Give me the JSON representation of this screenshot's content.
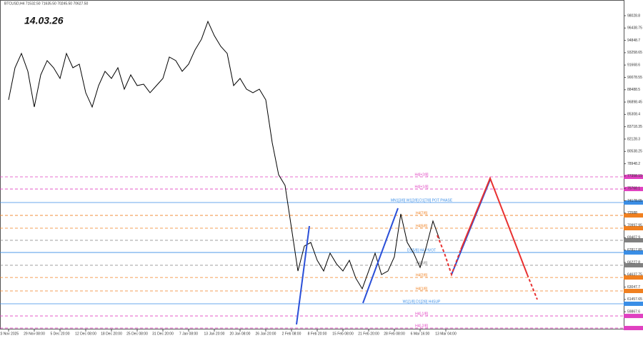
{
  "chart_data": {
    "type": "line",
    "header": "BTCUSD,H4  71532.50 71635.50 70245.50 70627.50",
    "title": "14.03.26",
    "categories": [
      "23 Nov 2025",
      null,
      null,
      null,
      "29 Nov 08:00",
      null,
      null,
      null,
      "5 Dec 20:00",
      null,
      null,
      null,
      "12 Dec 08:00",
      null,
      null,
      null,
      "18 Dec 20:00",
      null,
      null,
      null,
      "25 Dec 08:00",
      null,
      null,
      null,
      "31 Dec 20:00",
      null,
      null,
      null,
      "7 Jan 08:00",
      null,
      null,
      null,
      "13 Jan 20:00",
      null,
      null,
      null,
      "20 Jan 08:00",
      null,
      null,
      null,
      "26 Jan 20:00",
      null,
      null,
      null,
      "2 Feb 08:00",
      null,
      null,
      null,
      "8 Feb 20:00",
      null,
      null,
      null,
      "15 Feb 08:00",
      null,
      null,
      null,
      "21 Feb 20:00",
      null,
      null,
      null,
      "28 Feb 08:00",
      null,
      null,
      null,
      "6 Mar 16:00",
      null,
      null,
      null,
      "13 Mar 04:00"
    ],
    "series": [
      {
        "color": "#000000",
        "values": [
          87180,
          91320,
          93160,
          90860,
          86260,
          90400,
          92240,
          91320,
          89940,
          93160,
          91320,
          91780,
          88100,
          86260,
          89020,
          90860,
          89940,
          91320,
          88560,
          90400,
          89020,
          89200,
          88100,
          89020,
          89940,
          92700,
          92240,
          90860,
          91780,
          93620,
          95000,
          97290,
          95450,
          94080,
          93160,
          89020,
          89940,
          88560,
          88100,
          88560,
          87180,
          81670,
          77530,
          76150,
          70640,
          65120,
          68340,
          68800,
          66500,
          65120,
          67420,
          66040,
          65120,
          66500,
          64200,
          62830,
          65120,
          67420,
          64660,
          65120,
          66960,
          72480,
          68800,
          67420,
          65580,
          68340,
          71560,
          69260,
          null
        ]
      }
    ],
    "ylim": [
      57590,
      100050
    ],
    "yticks": [
      98028.8,
      96438.75,
      94848.7,
      93258.65,
      91668.6,
      90078.55,
      88488.5,
      86898.45,
      85308.4,
      83718.35,
      82128.3,
      80538.25,
      78948.2,
      77358.15,
      75768.1,
      74178.05,
      72588.0,
      70997.95,
      69407.9,
      67817.85,
      66227.8,
      64637.75,
      63047.7,
      61457.65,
      59867.6
    ],
    "levels": [
      {
        "label": "H4[+2/8]",
        "value": 77260,
        "color": "#e040c0",
        "dashed": true
      },
      {
        "label": "H4[+1/8]",
        "value": 75690,
        "color": "#e040c0",
        "dashed": true
      },
      {
        "label": "MN1[3/8] W1[2/8] D1[7/8] POT PHASE",
        "value": 73950,
        "color": "#3a8ee6",
        "dashed": false
      },
      {
        "label": "H4[7/8]",
        "value": 72290,
        "color": "#f08020",
        "dashed": true
      },
      {
        "label": "H4[6/8]",
        "value": 70640,
        "color": "#f08020",
        "dashed": true
      },
      {
        "value": 69080,
        "color": "#808080",
        "dashed": true
      },
      {
        "label": "D1[5/8] H4 PIVOT",
        "value": 67510,
        "color": "#3a8ee6",
        "dashed": false
      },
      {
        "label": "H4[3/8]",
        "value": 65860,
        "color": "#808080",
        "dashed": true
      },
      {
        "label": "H4[2/8]",
        "value": 64290,
        "color": "#f08020",
        "dashed": true
      },
      {
        "label": "H4[1/8]",
        "value": 62550,
        "color": "#f08020",
        "dashed": true
      },
      {
        "label": "W1[1/8] D1[2/8] H4SUP",
        "value": 60900,
        "color": "#3a8ee6",
        "dashed": false
      },
      {
        "label": "H4[-1/8]",
        "value": 59330,
        "color": "#e040c0",
        "dashed": true
      },
      {
        "label": "H4[-2/8]",
        "value": 57770,
        "color": "#e040c0",
        "dashed": true
      }
    ]
  }
}
